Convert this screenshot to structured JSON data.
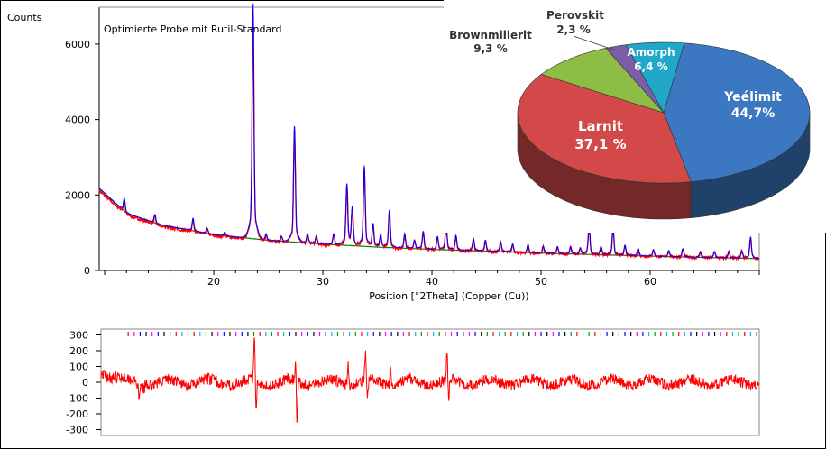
{
  "chart_data": [
    {
      "type": "line",
      "title": "Optimierte Probe mit Rutil-Standard",
      "ylabel": "Counts",
      "xlabel": "Position [°2Theta] (Copper (Cu))",
      "xlim": [
        9.5,
        70
      ],
      "ylim": [
        0,
        6500
      ],
      "xticks": [
        20,
        30,
        40,
        50,
        60
      ],
      "yticks": [
        0,
        2000,
        4000,
        6000
      ],
      "grid": false,
      "colors": {
        "observed": "#ff0000",
        "calculated": "#0000ff",
        "background": "#008000"
      },
      "background_curve": {
        "x": [
          9.5,
          12,
          15,
          20,
          25,
          30,
          35,
          40,
          45,
          50,
          55,
          60,
          65,
          70
        ],
        "y": [
          2180,
          1520,
          1220,
          950,
          800,
          700,
          620,
          560,
          510,
          460,
          420,
          380,
          345,
          315
        ]
      },
      "peaks": [
        {
          "x": 11.8,
          "y": 1880
        },
        {
          "x": 18.1,
          "y": 1350
        },
        {
          "x": 23.6,
          "y": 6420
        },
        {
          "x": 27.4,
          "y": 3540
        },
        {
          "x": 32.2,
          "y": 2120
        },
        {
          "x": 33.8,
          "y": 2560
        },
        {
          "x": 36.1,
          "y": 1500
        },
        {
          "x": 41.3,
          "y": 1150
        },
        {
          "x": 54.4,
          "y": 1120
        },
        {
          "x": 56.6,
          "y": 1050
        },
        {
          "x": 69.2,
          "y": 820
        }
      ]
    },
    {
      "type": "line",
      "title": "",
      "xlim": [
        9.5,
        70
      ],
      "ylim": [
        -320,
        320
      ],
      "yticks": [
        -300,
        -200,
        -100,
        0,
        100,
        200,
        300
      ],
      "series": [
        {
          "x": [
            10,
            12,
            13,
            20,
            23.6,
            27.4,
            30,
            33,
            36,
            41.3,
            45,
            50,
            55,
            60,
            65,
            70
          ],
          "y": [
            110,
            -40,
            -120,
            -60,
            280,
            -300,
            -40,
            150,
            60,
            200,
            -10,
            20,
            15,
            10,
            5,
            0
          ]
        }
      ],
      "color": "#ff0000"
    },
    {
      "type": "pie",
      "style": "3d",
      "slices": [
        {
          "label": "Yeélimit",
          "value_text": "44,7%",
          "value": 44.7,
          "color": "#3b78c1"
        },
        {
          "label": "Larnit",
          "value_text": "37,1 %",
          "value": 37.1,
          "color": "#d34848"
        },
        {
          "label": "Brownmillerit",
          "value_text": "9,3 %",
          "value": 9.3,
          "color": "#8ebd45"
        },
        {
          "label": "Perovskit",
          "value_text": "2,3 %",
          "value": 2.3,
          "color": "#7b5ea7"
        },
        {
          "label": "Amorph",
          "value_text": "6,4 %",
          "value": 6.4,
          "color": "#21a7c8"
        }
      ]
    }
  ]
}
